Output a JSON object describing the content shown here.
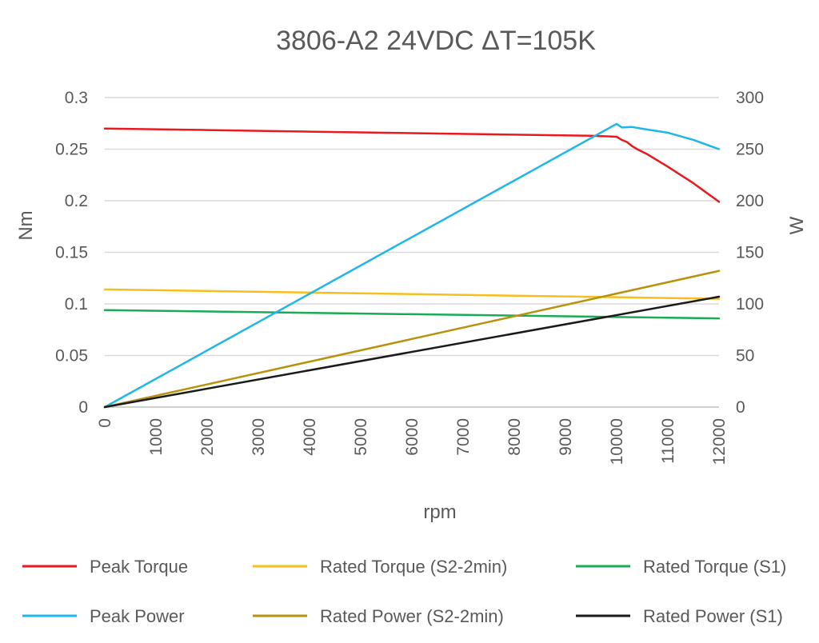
{
  "chart_data": {
    "type": "line",
    "title": "3806-A2 24VDC ΔT=105K",
    "xlabel": "rpm",
    "ylabel": "Nm",
    "y2label": "W",
    "xlim": [
      0,
      12000
    ],
    "ylim": [
      0,
      0.3
    ],
    "y2lim": [
      0,
      300
    ],
    "x_ticks": [
      0,
      1000,
      2000,
      3000,
      4000,
      5000,
      6000,
      7000,
      8000,
      9000,
      10000,
      11000,
      12000
    ],
    "y_ticks": [
      "0",
      "0.05",
      "0.1",
      "0.15",
      "0.2",
      "0.25",
      "0.3"
    ],
    "y2_ticks": [
      "0",
      "50",
      "100",
      "150",
      "200",
      "250",
      "300"
    ],
    "grid": true,
    "legend_position": "bottom",
    "series": [
      {
        "name": "Peak Torque",
        "axis": "left",
        "color": "#e8191f",
        "x": [
          0,
          2000,
          4000,
          6000,
          8000,
          9500,
          10000,
          10100,
          10200,
          10300,
          10400,
          10600,
          11000,
          11500,
          12000
        ],
        "y": [
          0.27,
          0.2685,
          0.267,
          0.2655,
          0.264,
          0.263,
          0.262,
          0.259,
          0.257,
          0.253,
          0.25,
          0.245,
          0.233,
          0.217,
          0.199
        ]
      },
      {
        "name": "Rated Torque (S2-2min)",
        "axis": "left",
        "color": "#f7bf1e",
        "x": [
          0,
          12000
        ],
        "y": [
          0.114,
          0.105
        ]
      },
      {
        "name": "Rated Torque (S1)",
        "axis": "left",
        "color": "#1bab54",
        "x": [
          0,
          12000
        ],
        "y": [
          0.094,
          0.086
        ]
      },
      {
        "name": "Peak Power",
        "axis": "right",
        "color": "#1fb7ea",
        "x": [
          0,
          10000,
          10100,
          10300,
          10600,
          11000,
          11500,
          12000
        ],
        "y": [
          0,
          274.5,
          271,
          271.5,
          269,
          266,
          259,
          250
        ]
      },
      {
        "name": "Rated Power (S2-2min)",
        "axis": "right",
        "color": "#b8920b",
        "x": [
          0,
          12000
        ],
        "y": [
          0,
          132
        ]
      },
      {
        "name": "Rated Power (S1)",
        "axis": "right",
        "color": "#1a1a1a",
        "x": [
          0,
          12000
        ],
        "y": [
          0,
          107
        ]
      }
    ]
  }
}
